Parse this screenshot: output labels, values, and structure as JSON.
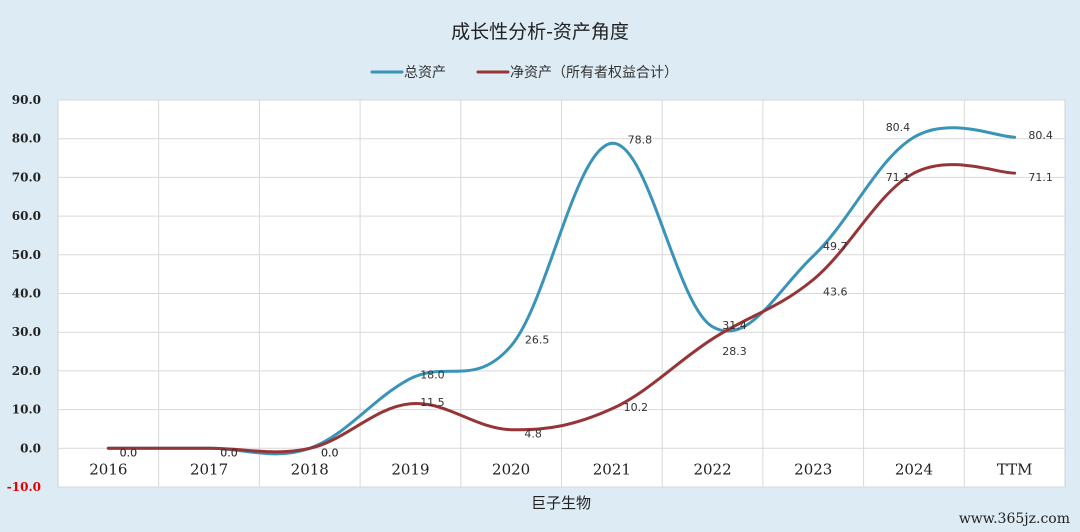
{
  "chart_data": {
    "type": "line",
    "title": "成长性分析-资产角度",
    "xlabel": "巨子生物",
    "ylabel": "",
    "categories": [
      "2016",
      "2017",
      "2018",
      "2019",
      "2020",
      "2021",
      "2022",
      "2023",
      "2024",
      "TTM"
    ],
    "y_ticks": [
      "90.0",
      "80.0",
      "70.0",
      "60.0",
      "50.0",
      "40.0",
      "30.0",
      "20.0",
      "10.0",
      "0.0",
      "-10.0"
    ],
    "ylim": [
      -10,
      90
    ],
    "grid": true,
    "legend_position": "top",
    "series": [
      {
        "name": "总资产",
        "color": "#3a93b8",
        "values": [
          0.0,
          0.0,
          0.0,
          18.0,
          26.5,
          78.8,
          31.4,
          49.7,
          80.4,
          80.4
        ],
        "labels": [
          "0.0",
          "0.0",
          "0.0",
          "18.0",
          "26.5",
          "78.8",
          "31.4",
          "49.7",
          "80.4",
          "80.4"
        ]
      },
      {
        "name": "净资产（所有者权益合计）",
        "color": "#963538",
        "values": [
          0.0,
          0.0,
          0.0,
          11.5,
          4.8,
          10.2,
          28.3,
          43.6,
          71.1,
          71.1
        ],
        "labels": [
          "0.0",
          "0.0",
          "0.0",
          "11.5",
          "4.8",
          "10.2",
          "28.3",
          "43.6",
          "71.1",
          "71.1"
        ]
      }
    ]
  },
  "watermark": "www.365jz.com"
}
